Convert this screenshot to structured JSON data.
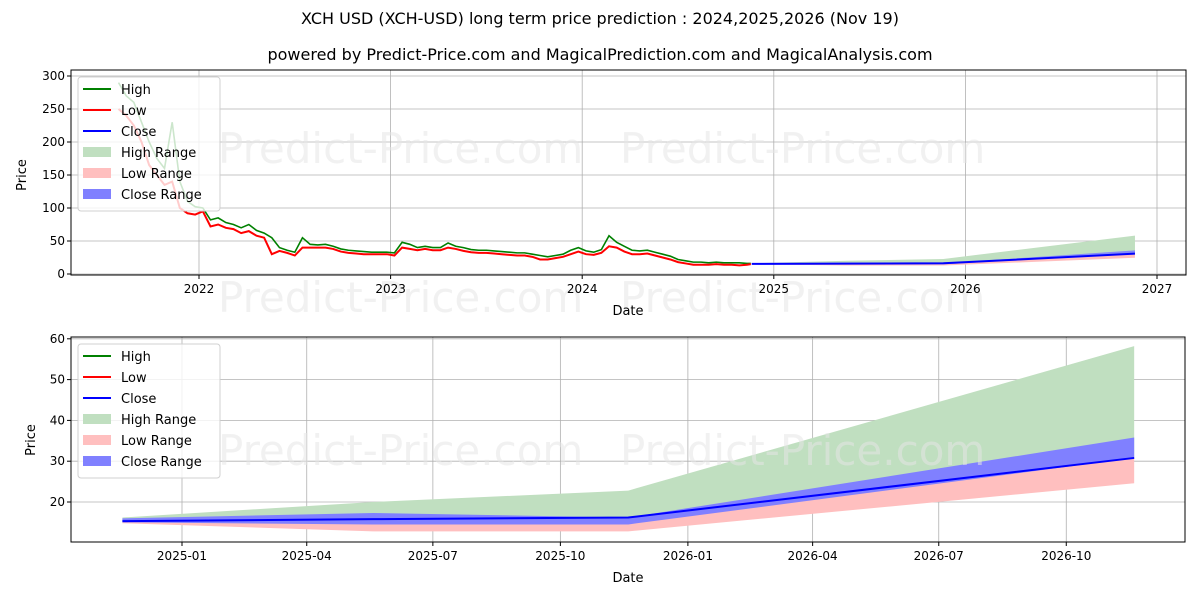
{
  "header": {
    "title": "XCH USD (XCH-USD) long term price prediction : 2024,2025,2026 (Nov 19)",
    "subtitle": "powered by Predict-Price.com and MagicalPrediction.com and MagicalAnalysis.com"
  },
  "watermark": "Predict-Price.com",
  "colors": {
    "high": "#008000",
    "low": "#ff0000",
    "close": "#0000ff",
    "high_range": "#c0dfc0",
    "low_range": "#ffbfbf",
    "close_range": "#8080ff",
    "grid": "#b0b0b0"
  },
  "legend": [
    {
      "label": "High",
      "type": "line",
      "color_key": "high"
    },
    {
      "label": "Low",
      "type": "line",
      "color_key": "low"
    },
    {
      "label": "Close",
      "type": "line",
      "color_key": "close"
    },
    {
      "label": "High Range",
      "type": "patch",
      "color_key": "high_range"
    },
    {
      "label": "Low Range",
      "type": "patch",
      "color_key": "low_range"
    },
    {
      "label": "Close Range",
      "type": "patch",
      "color_key": "close_range"
    }
  ],
  "chart_data": [
    {
      "type": "line",
      "title": "XCH USD (XCH-USD) long term price prediction : 2024,2025,2026 (Nov 19)",
      "xlabel": "Date",
      "ylabel": "Price",
      "ylim": [
        0,
        305
      ],
      "xlim": [
        2021.3,
        2027.15
      ],
      "grid": true,
      "legend_position": "upper left",
      "x_ticks": [
        "2022",
        "2023",
        "2024",
        "2025",
        "2026",
        "2027"
      ],
      "y_ticks": [
        0,
        50,
        100,
        150,
        200,
        250,
        300
      ],
      "historical": {
        "x": [
          2021.58,
          2021.62,
          2021.66,
          2021.7,
          2021.74,
          2021.78,
          2021.82,
          2021.86,
          2021.9,
          2021.94,
          2021.98,
          2022.02,
          2022.06,
          2022.1,
          2022.14,
          2022.18,
          2022.22,
          2022.26,
          2022.3,
          2022.34,
          2022.38,
          2022.42,
          2022.46,
          2022.5,
          2022.54,
          2022.58,
          2022.62,
          2022.66,
          2022.7,
          2022.74,
          2022.78,
          2022.82,
          2022.86,
          2022.9,
          2022.94,
          2022.98,
          2023.02,
          2023.06,
          2023.1,
          2023.14,
          2023.18,
          2023.22,
          2023.26,
          2023.3,
          2023.34,
          2023.38,
          2023.42,
          2023.46,
          2023.5,
          2023.54,
          2023.58,
          2023.62,
          2023.66,
          2023.7,
          2023.74,
          2023.78,
          2023.82,
          2023.86,
          2023.9,
          2023.94,
          2023.98,
          2024.02,
          2024.06,
          2024.1,
          2024.14,
          2024.18,
          2024.22,
          2024.26,
          2024.3,
          2024.34,
          2024.38,
          2024.42,
          2024.46,
          2024.5,
          2024.54,
          2024.58,
          2024.62,
          2024.66,
          2024.7,
          2024.74,
          2024.78,
          2024.82,
          2024.86,
          2024.88
        ],
        "high": [
          290,
          270,
          260,
          230,
          200,
          175,
          160,
          230,
          140,
          110,
          102,
          100,
          82,
          85,
          78,
          75,
          70,
          75,
          66,
          62,
          55,
          40,
          36,
          33,
          55,
          45,
          44,
          45,
          42,
          38,
          36,
          35,
          34,
          33,
          33,
          33,
          32,
          48,
          45,
          40,
          42,
          40,
          40,
          47,
          42,
          40,
          37,
          36,
          36,
          35,
          34,
          33,
          32,
          32,
          30,
          28,
          26,
          28,
          30,
          36,
          40,
          35,
          33,
          37,
          58,
          48,
          42,
          36,
          35,
          36,
          33,
          30,
          27,
          22,
          20,
          18,
          18,
          17,
          18,
          17,
          17,
          17,
          16,
          16
        ],
        "low": [
          250,
          240,
          225,
          200,
          165,
          150,
          135,
          140,
          100,
          92,
          90,
          95,
          72,
          75,
          70,
          68,
          62,
          65,
          58,
          55,
          30,
          35,
          32,
          28,
          40,
          40,
          40,
          40,
          38,
          34,
          32,
          31,
          30,
          30,
          30,
          30,
          28,
          40,
          38,
          36,
          38,
          36,
          36,
          40,
          38,
          35,
          33,
          32,
          32,
          31,
          30,
          29,
          28,
          28,
          26,
          22,
          22,
          24,
          26,
          30,
          34,
          30,
          29,
          32,
          42,
          40,
          34,
          30,
          30,
          31,
          28,
          25,
          22,
          18,
          16,
          14,
          14,
          14,
          15,
          14,
          14,
          13,
          14,
          15
        ]
      }
    },
    {
      "type": "area",
      "xlabel": "Date",
      "ylabel": "Price",
      "ylim": [
        10,
        60.5
      ],
      "grid": true,
      "legend_position": "upper left",
      "x_ticks": [
        "2025-01",
        "2025-04",
        "2025-07",
        "2025-10",
        "2026-01",
        "2026-04",
        "2026-07",
        "2026-10"
      ],
      "y_ticks": [
        20,
        30,
        40,
        50,
        60
      ],
      "x": [
        "2024-11-19",
        "2025-05-19",
        "2025-11-19",
        "2026-11-19"
      ],
      "series": [
        {
          "name": "Close",
          "values": [
            15.3,
            15.8,
            16.2,
            30.8
          ]
        },
        {
          "name": "High Range upper",
          "values": [
            16.2,
            20.0,
            22.8,
            58.2
          ]
        },
        {
          "name": "Low Range lower",
          "values": [
            14.8,
            12.8,
            12.8,
            24.6
          ]
        },
        {
          "name": "Close Range upper",
          "values": [
            16.0,
            17.3,
            16.2,
            35.8
          ]
        },
        {
          "name": "Close Range lower",
          "values": [
            15.0,
            14.5,
            14.5,
            30.8
          ]
        }
      ]
    }
  ]
}
